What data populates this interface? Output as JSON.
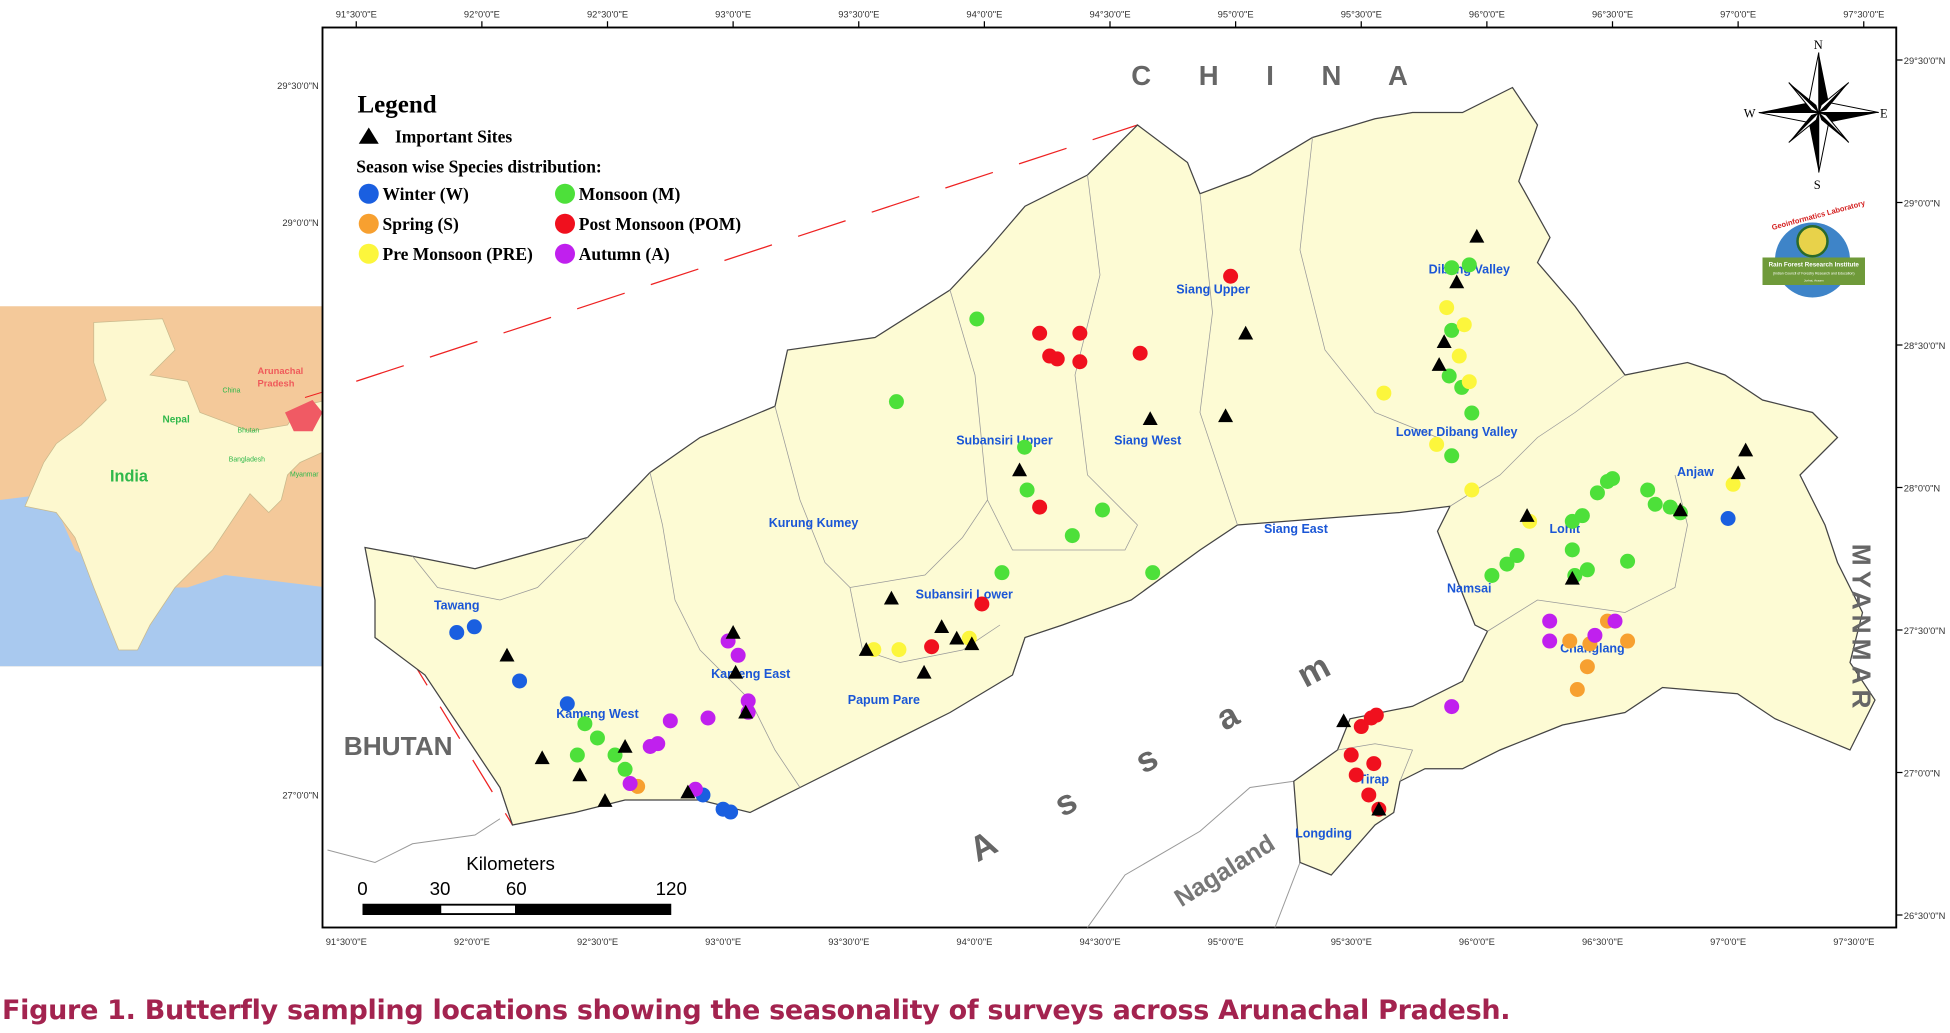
{
  "caption": "Figure 1. Butterfly sampling locations showing the seasonality of surveys across Arunachal Pradesh.",
  "legend": {
    "title": "Legend",
    "sites_label": "Important Sites",
    "season_title": "Season wise Species distribution:",
    "seasons": [
      {
        "key": "W",
        "label": "Winter (W)",
        "color": "#1a5fe0"
      },
      {
        "key": "S",
        "label": "Spring (S)",
        "color": "#f7a030"
      },
      {
        "key": "PRE",
        "label": "Pre Monsoon (PRE)",
        "color": "#fcf63c"
      },
      {
        "key": "M",
        "label": "Monsoon (M)",
        "color": "#4de03a"
      },
      {
        "key": "POM",
        "label": "Post Monsoon (POM)",
        "color": "#f0101e"
      },
      {
        "key": "A",
        "label": "Autumn (A)",
        "color": "#c020ee"
      }
    ]
  },
  "countries": {
    "china": "C H I N A",
    "bhutan": "BHUTAN",
    "myanmar": "MYANMAR",
    "assam": "A s s a m",
    "nagaland": "Nagaland"
  },
  "compass": {
    "n": "N",
    "s": "S",
    "e": "E",
    "w": "W"
  },
  "logo": {
    "arc": "Geoinformatics Laboratory",
    "banner": "Rain Forest Research Institute",
    "sub": "(Indian Council of Forestry Research and Education)",
    "city": "Jorhat, Assam"
  },
  "inset": {
    "india": "India",
    "nepal": "Nepal",
    "china": "China",
    "bhutan": "Bhutan",
    "bangladesh": "Bangladesh",
    "myanmar": "Myanmar",
    "state": "Arunachal",
    "state2": "Pradesh"
  },
  "scalebar": {
    "title": "Kilometers",
    "labels": [
      "0",
      "30",
      "60",
      "120"
    ]
  },
  "axes": {
    "lon_top": [
      [
        "91°30'0\"E",
        91.5
      ],
      [
        "92°0'0\"E",
        92
      ],
      [
        "92°30'0\"E",
        92.5
      ],
      [
        "93°0'0\"E",
        93
      ],
      [
        "93°30'0\"E",
        93.5
      ],
      [
        "94°0'0\"E",
        94
      ],
      [
        "94°30'0\"E",
        94.5
      ],
      [
        "95°0'0\"E",
        95
      ],
      [
        "95°30'0\"E",
        95.5
      ],
      [
        "96°0'0\"E",
        96
      ],
      [
        "96°30'0\"E",
        96.5
      ],
      [
        "97°0'0\"E",
        97
      ],
      [
        "97°30'0\"E",
        97.5
      ]
    ],
    "lat_right": [
      [
        "29°30'0\"N",
        29.5
      ],
      [
        "29°0'0\"N",
        29
      ],
      [
        "28°30'0\"N",
        28.5
      ],
      [
        "28°0'0\"N",
        28
      ],
      [
        "27°30'0\"N",
        27.5
      ],
      [
        "27°0'0\"N",
        27
      ],
      [
        "26°30'0\"N",
        26.5
      ]
    ],
    "lat_left": [
      [
        "29°30'0\"N",
        29.42
      ],
      [
        "29°0'0\"N",
        28.94
      ],
      [
        "27°0'0\"N",
        26.93
      ]
    ]
  },
  "districts": [
    [
      "Tawang",
      91.9,
      27.58
    ],
    [
      "Kameng West",
      92.46,
      27.2
    ],
    [
      "Kameng East",
      93.07,
      27.34
    ],
    [
      "Kurung Kumey",
      93.32,
      27.87
    ],
    [
      "Subansiri Upper",
      94.08,
      28.16
    ],
    [
      "Siang Upper",
      94.91,
      28.69
    ],
    [
      "Siang West",
      94.65,
      28.16
    ],
    [
      "Siang East",
      95.24,
      27.85
    ],
    [
      "Subansiri Lower",
      93.92,
      27.62
    ],
    [
      "Papum Pare",
      93.6,
      27.25
    ],
    [
      "Dibang Valley",
      95.93,
      28.76
    ],
    [
      "Lower Dibang Valley",
      95.88,
      28.19
    ],
    [
      "Anjaw",
      96.83,
      28.05
    ],
    [
      "Lohit",
      96.31,
      27.85
    ],
    [
      "Namsai",
      95.93,
      27.64
    ],
    [
      "Changlang",
      96.42,
      27.43
    ],
    [
      "Tirap",
      95.55,
      26.97
    ],
    [
      "Longding",
      95.35,
      26.78
    ]
  ],
  "points": {
    "W": [
      [
        91.9,
        27.5
      ],
      [
        91.97,
        27.52
      ],
      [
        92.15,
        27.33
      ],
      [
        92.34,
        27.25
      ],
      [
        92.88,
        26.93
      ],
      [
        92.96,
        26.88
      ],
      [
        92.99,
        26.87
      ],
      [
        96.96,
        27.9
      ]
    ],
    "M": [
      [
        93.97,
        28.6
      ],
      [
        93.65,
        28.31
      ],
      [
        94.16,
        28.15
      ],
      [
        94.17,
        28.0
      ],
      [
        94.35,
        27.84
      ],
      [
        94.47,
        27.93
      ],
      [
        94.07,
        27.71
      ],
      [
        94.67,
        27.71
      ],
      [
        92.41,
        27.18
      ],
      [
        92.46,
        27.13
      ],
      [
        92.38,
        27.07
      ],
      [
        92.53,
        27.07
      ],
      [
        92.57,
        27.02
      ],
      [
        95.86,
        28.78
      ],
      [
        95.93,
        28.79
      ],
      [
        95.86,
        28.56
      ],
      [
        95.85,
        28.4
      ],
      [
        95.9,
        28.36
      ],
      [
        95.94,
        28.27
      ],
      [
        95.86,
        28.12
      ],
      [
        96.02,
        27.7
      ],
      [
        96.08,
        27.74
      ],
      [
        96.12,
        27.77
      ],
      [
        96.34,
        27.89
      ],
      [
        96.38,
        27.91
      ],
      [
        96.44,
        27.99
      ],
      [
        96.48,
        28.03
      ],
      [
        96.5,
        28.04
      ],
      [
        96.56,
        27.75
      ],
      [
        96.64,
        28.0
      ],
      [
        96.67,
        27.95
      ],
      [
        96.73,
        27.94
      ],
      [
        96.77,
        27.92
      ],
      [
        96.35,
        27.7
      ],
      [
        96.4,
        27.72
      ],
      [
        96.34,
        27.79
      ]
    ],
    "POM": [
      [
        94.22,
        28.55
      ],
      [
        94.26,
        28.47
      ],
      [
        94.29,
        28.46
      ],
      [
        94.38,
        28.55
      ],
      [
        94.38,
        28.45
      ],
      [
        94.62,
        28.48
      ],
      [
        94.98,
        28.75
      ],
      [
        94.22,
        27.94
      ],
      [
        93.99,
        27.6
      ],
      [
        93.79,
        27.45
      ],
      [
        95.5,
        27.17
      ],
      [
        95.54,
        27.2
      ],
      [
        95.56,
        27.21
      ],
      [
        95.46,
        27.07
      ],
      [
        95.48,
        27.0
      ],
      [
        95.55,
        27.04
      ],
      [
        95.53,
        26.93
      ],
      [
        95.57,
        26.88
      ]
    ],
    "PRE": [
      [
        95.84,
        28.64
      ],
      [
        95.91,
        28.58
      ],
      [
        95.89,
        28.47
      ],
      [
        95.59,
        28.34
      ],
      [
        95.93,
        28.38
      ],
      [
        95.8,
        28.16
      ],
      [
        95.94,
        28.0
      ],
      [
        96.17,
        27.89
      ],
      [
        96.98,
        28.02
      ],
      [
        93.56,
        27.44
      ],
      [
        93.66,
        27.44
      ],
      [
        93.94,
        27.48
      ]
    ],
    "S": [
      [
        96.33,
        27.47
      ],
      [
        96.41,
        27.46
      ],
      [
        96.48,
        27.54
      ],
      [
        96.56,
        27.47
      ],
      [
        96.4,
        27.38
      ],
      [
        96.36,
        27.3
      ],
      [
        92.62,
        26.96
      ]
    ],
    "A": [
      [
        92.98,
        27.47
      ],
      [
        93.02,
        27.42
      ],
      [
        93.06,
        27.26
      ],
      [
        93.06,
        27.22
      ],
      [
        92.9,
        27.2
      ],
      [
        92.75,
        27.19
      ],
      [
        92.67,
        27.1
      ],
      [
        92.7,
        27.11
      ],
      [
        92.59,
        26.97
      ],
      [
        92.85,
        26.95
      ],
      [
        95.86,
        27.24
      ],
      [
        96.25,
        27.54
      ],
      [
        96.25,
        27.47
      ],
      [
        96.43,
        27.49
      ],
      [
        96.51,
        27.54
      ]
    ]
  },
  "sites": [
    [
      95.96,
      28.89
    ],
    [
      95.88,
      28.73
    ],
    [
      95.83,
      28.52
    ],
    [
      95.81,
      28.44
    ],
    [
      95.04,
      28.55
    ],
    [
      94.96,
      28.26
    ],
    [
      94.66,
      28.25
    ],
    [
      94.14,
      28.07
    ],
    [
      93.63,
      27.62
    ],
    [
      93.83,
      27.52
    ],
    [
      93.89,
      27.48
    ],
    [
      93.95,
      27.46
    ],
    [
      93.76,
      27.36
    ],
    [
      93.53,
      27.44
    ],
    [
      93.0,
      27.5
    ],
    [
      93.01,
      27.36
    ],
    [
      93.05,
      27.22
    ],
    [
      92.1,
      27.42
    ],
    [
      92.24,
      27.06
    ],
    [
      92.39,
      27.0
    ],
    [
      92.49,
      26.91
    ],
    [
      92.57,
      27.1
    ],
    [
      92.82,
      26.94
    ],
    [
      96.16,
      27.91
    ],
    [
      97.0,
      28.06
    ],
    [
      97.03,
      28.14
    ],
    [
      95.43,
      27.19
    ],
    [
      95.57,
      26.88
    ],
    [
      96.34,
      27.69
    ],
    [
      96.77,
      27.93
    ]
  ]
}
